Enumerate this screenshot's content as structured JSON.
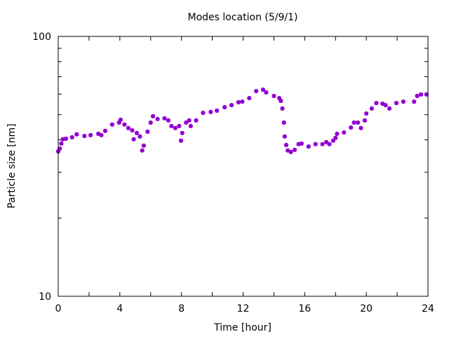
{
  "chart_data": {
    "type": "scatter",
    "title": "Modes location (5/9/1)",
    "xlabel": "Time [hour]",
    "ylabel": "Particle size [nm]",
    "xlim": [
      0,
      24
    ],
    "ylim": [
      10,
      100
    ],
    "yscale": "log",
    "xticks": [
      0,
      4,
      8,
      12,
      16,
      20,
      24
    ],
    "xtick_labels": [
      "0",
      "4",
      "8",
      "12",
      "16",
      "20",
      "24"
    ],
    "yticks": [
      10,
      100
    ],
    "ytick_labels": [
      "10",
      "100"
    ],
    "grid": false,
    "marker_color": "#9400d3",
    "series": [
      {
        "name": "modes",
        "x": [
          0,
          0.1,
          0.2,
          0.3,
          0.5,
          0.9,
          1.2,
          1.7,
          2.1,
          2.6,
          2.8,
          3.05,
          3.5,
          3.95,
          4.05,
          4.3,
          4.55,
          4.8,
          4.9,
          5.1,
          5.3,
          5.45,
          5.55,
          5.8,
          6.0,
          6.15,
          6.45,
          6.9,
          7.15,
          7.35,
          7.6,
          7.85,
          7.97,
          8.05,
          8.3,
          8.5,
          8.6,
          8.95,
          9.4,
          9.9,
          10.3,
          10.8,
          11.25,
          11.7,
          11.95,
          12.4,
          12.85,
          13.3,
          13.5,
          14.0,
          14.35,
          14.45,
          14.55,
          14.65,
          14.7,
          14.8,
          14.9,
          15.1,
          15.35,
          15.6,
          15.8,
          16.25,
          16.7,
          17.15,
          17.4,
          17.6,
          17.85,
          18.0,
          18.1,
          18.55,
          19.0,
          19.2,
          19.45,
          19.65,
          19.9,
          20.0,
          20.35,
          20.65,
          21.05,
          21.25,
          21.5,
          21.95,
          22.4,
          23.1,
          23.3,
          23.55,
          23.9
        ],
        "y": [
          36.1,
          37.0,
          38.7,
          40.2,
          40.4,
          40.9,
          42.0,
          41.4,
          41.7,
          42.2,
          41.7,
          43.3,
          45.8,
          46.6,
          47.8,
          45.8,
          44.4,
          43.5,
          40.2,
          42.5,
          41.2,
          36.4,
          38.0,
          43.0,
          46.6,
          49.3,
          48.1,
          48.4,
          47.5,
          45.2,
          44.4,
          45.2,
          39.7,
          42.5,
          46.6,
          47.5,
          45.2,
          47.5,
          50.8,
          51.2,
          51.8,
          53.4,
          54.4,
          55.8,
          56.1,
          57.9,
          61.6,
          62.4,
          60.9,
          59.0,
          57.9,
          56.5,
          52.8,
          46.6,
          41.2,
          38.2,
          36.4,
          35.9,
          36.6,
          38.5,
          38.7,
          37.7,
          38.5,
          38.5,
          39.2,
          38.5,
          39.7,
          40.7,
          42.2,
          42.7,
          44.6,
          46.6,
          46.6,
          44.4,
          47.5,
          50.5,
          52.8,
          55.4,
          55.1,
          54.4,
          52.8,
          55.4,
          56.1,
          56.1,
          59.0,
          59.8,
          59.8
        ]
      }
    ]
  }
}
